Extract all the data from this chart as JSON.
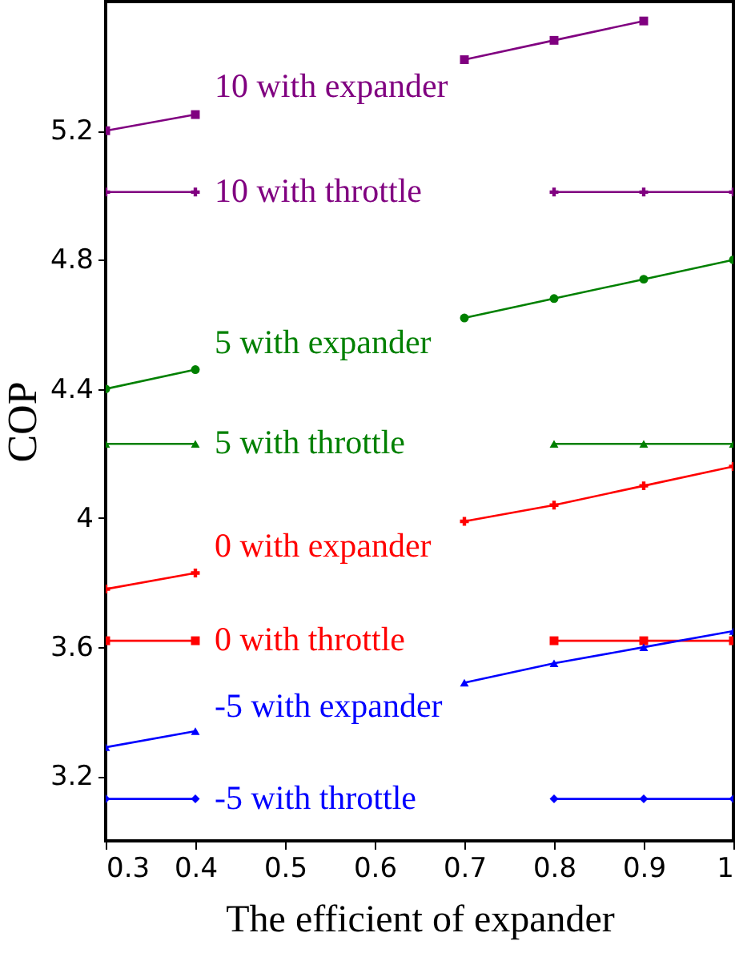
{
  "chart_data": {
    "type": "line",
    "xlabel": "The efficient of expander",
    "ylabel": "COP",
    "x": [
      0.3,
      0.4,
      0.5,
      0.6,
      0.7,
      0.8,
      0.9,
      1.0
    ],
    "series": [
      {
        "name": "10 with expander",
        "color": "#800080",
        "marker": "square",
        "values": [
          5.2,
          5.25,
          null,
          null,
          5.42,
          5.48,
          5.54,
          null
        ]
      },
      {
        "name": "10 with throttle",
        "color": "#800080",
        "marker": "cross",
        "values": [
          5.01,
          5.01,
          null,
          null,
          null,
          5.01,
          5.01,
          5.01
        ]
      },
      {
        "name": "5 with expander",
        "color": "#008000",
        "marker": "circle",
        "values": [
          4.4,
          4.46,
          null,
          null,
          4.62,
          4.68,
          4.74,
          4.8
        ]
      },
      {
        "name": "5 with throttle",
        "color": "#008000",
        "marker": "triangle",
        "values": [
          4.23,
          4.23,
          null,
          null,
          null,
          4.23,
          4.23,
          4.23
        ]
      },
      {
        "name": "0 with expander",
        "color": "#ff0000",
        "marker": "cross",
        "values": [
          3.78,
          3.83,
          null,
          null,
          3.99,
          4.04,
          4.1,
          4.16
        ]
      },
      {
        "name": "0 with throttle",
        "color": "#ff0000",
        "marker": "square",
        "values": [
          3.62,
          3.62,
          null,
          null,
          null,
          3.62,
          3.62,
          3.62
        ]
      },
      {
        "name": "-5 with expander",
        "color": "#0000ff",
        "marker": "triangle",
        "values": [
          3.29,
          3.34,
          null,
          null,
          3.49,
          3.55,
          3.6,
          3.65
        ]
      },
      {
        "name": "-5 with throttle",
        "color": "#0000ff",
        "marker": "diamond",
        "values": [
          3.13,
          3.13,
          null,
          null,
          null,
          3.13,
          3.13,
          3.13
        ]
      }
    ],
    "xlim": [
      0.3,
      1.0
    ],
    "xticks": [
      0.3,
      0.4,
      0.5,
      0.6,
      0.7,
      0.8,
      0.9,
      1
    ],
    "ylim": [
      3.0,
      5.6
    ],
    "yticks": [
      3.2,
      3.6,
      4,
      4.4,
      4.8,
      5.2
    ],
    "grid": false
  }
}
